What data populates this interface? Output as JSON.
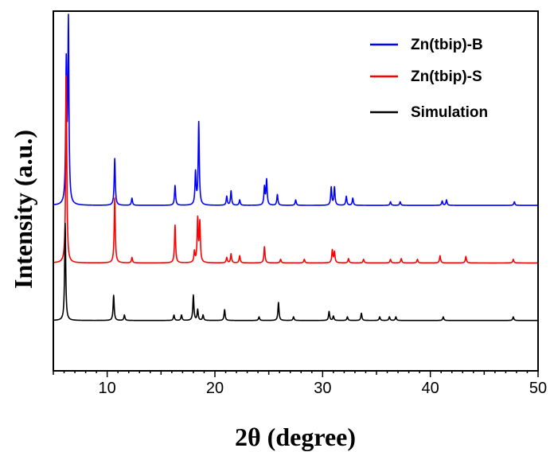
{
  "chart_data": {
    "type": "line",
    "title": "",
    "xlabel": "2θ  (degree)",
    "ylabel": "Intensity (a.u.)",
    "xlim": [
      5,
      50
    ],
    "ylim": [
      0,
      100
    ],
    "x_ticks": [
      "10",
      "20",
      "30",
      "40",
      "50"
    ],
    "y_ticks_shown": false,
    "legend_position": "top-right",
    "series": [
      {
        "name": "Zn(tbip)-B",
        "color": "#0000ff",
        "baseline": 46,
        "peaks": [
          [
            6.2,
            38
          ],
          [
            6.4,
            50
          ],
          [
            10.7,
            13
          ],
          [
            12.3,
            2
          ],
          [
            16.3,
            5.5
          ],
          [
            18.2,
            9
          ],
          [
            18.5,
            23
          ],
          [
            21.1,
            2.5
          ],
          [
            21.5,
            4
          ],
          [
            22.3,
            1.5
          ],
          [
            24.6,
            5
          ],
          [
            24.8,
            7
          ],
          [
            25.8,
            3
          ],
          [
            27.5,
            1.5
          ],
          [
            30.8,
            5
          ],
          [
            31.1,
            5
          ],
          [
            32.2,
            2.5
          ],
          [
            32.8,
            2
          ],
          [
            36.3,
            1
          ],
          [
            37.2,
            1
          ],
          [
            41.1,
            1.2
          ],
          [
            41.5,
            1.5
          ],
          [
            47.8,
            1
          ]
        ]
      },
      {
        "name": "Zn(tbip)-S",
        "color": "#ff0000",
        "baseline": 30,
        "peaks": [
          [
            6.2,
            52
          ],
          [
            10.7,
            18
          ],
          [
            12.3,
            1.5
          ],
          [
            16.3,
            10.5
          ],
          [
            18.1,
            3
          ],
          [
            18.4,
            12
          ],
          [
            18.6,
            11
          ],
          [
            21.1,
            1.5
          ],
          [
            21.5,
            2.5
          ],
          [
            22.3,
            2
          ],
          [
            24.6,
            4.5
          ],
          [
            26.1,
            1
          ],
          [
            28.3,
            1
          ],
          [
            30.9,
            3.5
          ],
          [
            31.1,
            3
          ],
          [
            32.4,
            1.2
          ],
          [
            33.8,
            1
          ],
          [
            36.3,
            1
          ],
          [
            37.3,
            1.2
          ],
          [
            38.8,
            1
          ],
          [
            40.9,
            2
          ],
          [
            43.3,
            1.8
          ],
          [
            47.7,
            1
          ]
        ]
      },
      {
        "name": "Simulation",
        "color": "#000000",
        "baseline": 14,
        "peaks": [
          [
            6.1,
            27
          ],
          [
            10.6,
            7
          ],
          [
            11.6,
            1.5
          ],
          [
            16.2,
            1.5
          ],
          [
            16.9,
            1.5
          ],
          [
            18.0,
            7
          ],
          [
            18.4,
            3
          ],
          [
            18.9,
            1.5
          ],
          [
            20.9,
            3
          ],
          [
            24.1,
            1
          ],
          [
            25.9,
            5
          ],
          [
            27.3,
            1
          ],
          [
            30.6,
            2.5
          ],
          [
            31.0,
            1.2
          ],
          [
            32.3,
            1
          ],
          [
            33.6,
            2
          ],
          [
            35.3,
            1
          ],
          [
            36.2,
            1
          ],
          [
            36.8,
            1
          ],
          [
            41.2,
            1
          ],
          [
            47.7,
            1
          ]
        ]
      }
    ]
  }
}
